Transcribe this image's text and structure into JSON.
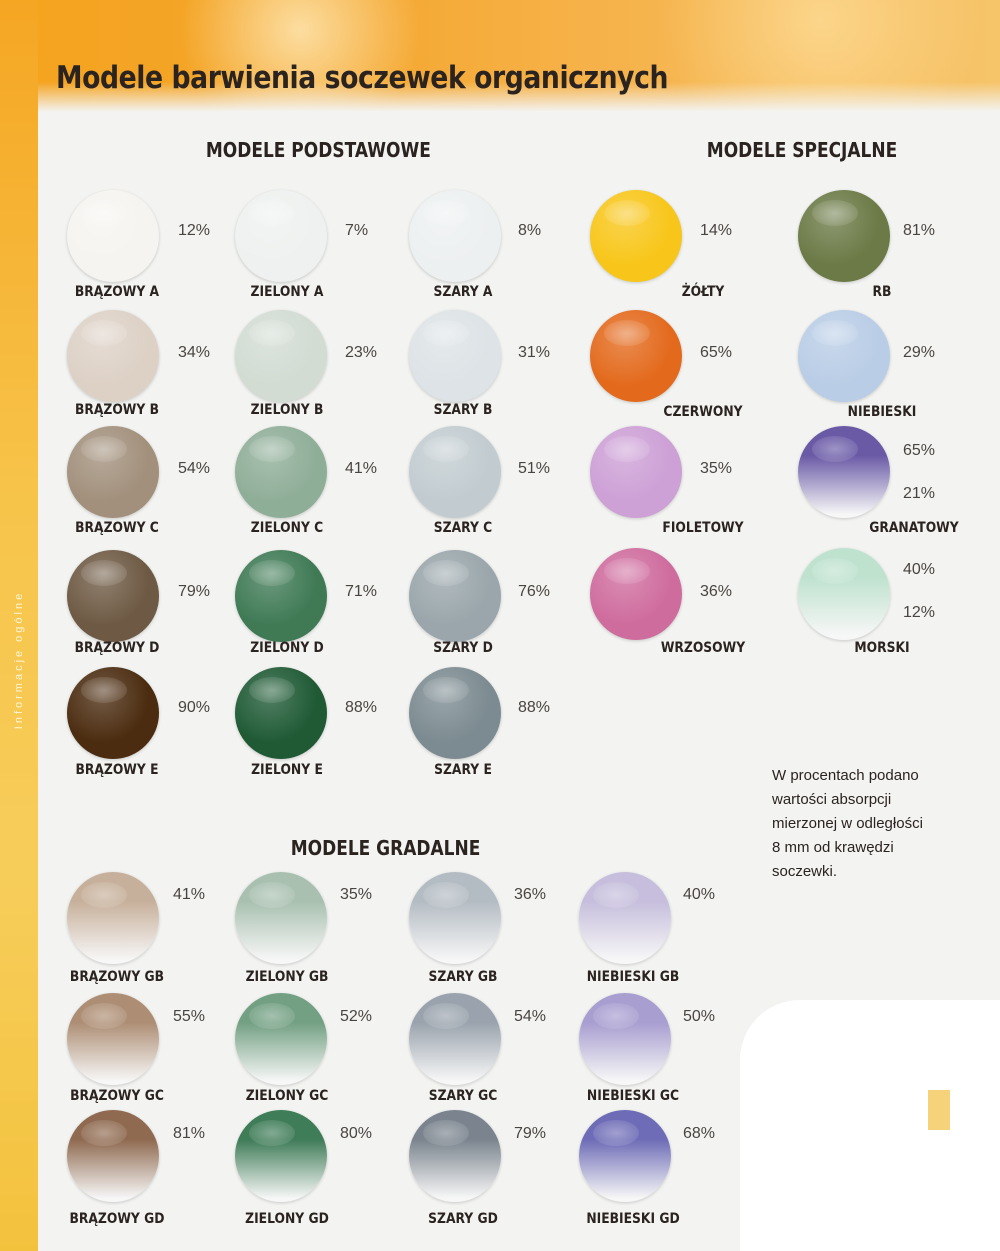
{
  "title": "Modele barwienia soczewek organicznych",
  "side_text": "Informacje ogólne",
  "sections": {
    "basic": "MODELE PODSTAWOWE",
    "special": "MODELE SPECJALNE",
    "gradient": "MODELE GRADALNE"
  },
  "basic_models": [
    {
      "name": "BRĄZOWY A",
      "absorption": "12%",
      "color": "#f6f4f0"
    },
    {
      "name": "ZIELONY A",
      "absorption": "7%",
      "color": "#eef1ef"
    },
    {
      "name": "SZARY A",
      "absorption": "8%",
      "color": "#edf0f1"
    },
    {
      "name": "BRĄZOWY B",
      "absorption": "34%",
      "color": "#ddd1c6"
    },
    {
      "name": "ZIELONY B",
      "absorption": "23%",
      "color": "#d2dcd3"
    },
    {
      "name": "SZARY B",
      "absorption": "31%",
      "color": "#dde3e6"
    },
    {
      "name": "BRĄZOWY C",
      "absorption": "54%",
      "color": "#a2907c"
    },
    {
      "name": "ZIELONY C",
      "absorption": "41%",
      "color": "#8fae98"
    },
    {
      "name": "SZARY C",
      "absorption": "51%",
      "color": "#c2ccd0"
    },
    {
      "name": "BRĄZOWY D",
      "absorption": "79%",
      "color": "#6e5a44"
    },
    {
      "name": "ZIELONY D",
      "absorption": "71%",
      "color": "#3f7a55"
    },
    {
      "name": "SZARY D",
      "absorption": "76%",
      "color": "#9aa6ab"
    },
    {
      "name": "BRĄZOWY E",
      "absorption": "90%",
      "color": "#4b2c10"
    },
    {
      "name": "ZIELONY E",
      "absorption": "88%",
      "color": "#1f5a35"
    },
    {
      "name": "SZARY E",
      "absorption": "88%",
      "color": "#7c8b91"
    }
  ],
  "special_models": [
    {
      "name": "ŻÓŁTY",
      "absorption": "14%",
      "color": "#f8c61a"
    },
    {
      "name": "RB",
      "absorption": "81%",
      "color": "#6b7a46"
    },
    {
      "name": "CZERWONY",
      "absorption": "65%",
      "color": "#e36a1d"
    },
    {
      "name": "NIEBIESKI",
      "absorption": "29%",
      "color": "#b9cde6"
    },
    {
      "name": "FIOLETOWY",
      "absorption": "35%",
      "color": "#cda0d6"
    },
    {
      "name": "GRANATOWY",
      "absorption": "65%",
      "absorption_bottom": "21%",
      "color": "#6a5aa6"
    },
    {
      "name": "WRZOSOWY",
      "absorption": "36%",
      "color": "#cf6c9e"
    },
    {
      "name": "MORSKI",
      "absorption": "40%",
      "absorption_bottom": "12%",
      "color": "#bfe2cf"
    }
  ],
  "gradient_models": [
    {
      "name": "BRĄZOWY GB",
      "absorption": "41%",
      "color": "#c7b09b"
    },
    {
      "name": "ZIELONY GB",
      "absorption": "35%",
      "color": "#a9c0b0"
    },
    {
      "name": "SZARY GB",
      "absorption": "36%",
      "color": "#b4bcc3"
    },
    {
      "name": "NIEBIESKI GB",
      "absorption": "40%",
      "color": "#c6bedc"
    },
    {
      "name": "BRĄZOWY GC",
      "absorption": "55%",
      "color": "#ad8e74"
    },
    {
      "name": "ZIELONY GC",
      "absorption": "52%",
      "color": "#73a083"
    },
    {
      "name": "SZARY GC",
      "absorption": "54%",
      "color": "#9aa3ad"
    },
    {
      "name": "NIEBIESKI GC",
      "absorption": "50%",
      "color": "#a89ed0"
    },
    {
      "name": "BRĄZOWY GD",
      "absorption": "81%",
      "color": "#8f6a50"
    },
    {
      "name": "ZIELONY GD",
      "absorption": "80%",
      "color": "#3f7c58"
    },
    {
      "name": "SZARY GD",
      "absorption": "79%",
      "color": "#7b848e"
    },
    {
      "name": "NIEBIESKI GD",
      "absorption": "68%",
      "color": "#6e6cb6"
    }
  ],
  "note_lines": [
    "W procentach podano",
    "wartości absorpcji",
    "mierzonej w odległości",
    "8 mm od krawędzi",
    "soczewki."
  ]
}
